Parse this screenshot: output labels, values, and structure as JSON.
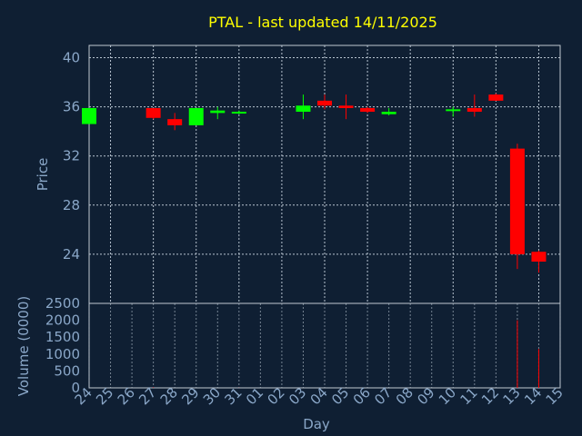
{
  "chart_data": {
    "type": "candlestick",
    "title": "PTAL - last updated 14/11/2025",
    "xlabel": "Day",
    "ylabel": "Price",
    "volume_label": "Volume (0000)",
    "ylim": [
      20,
      41
    ],
    "volume_ylim": [
      0,
      2500
    ],
    "y_ticks": [
      "24",
      "28",
      "32",
      "36",
      "40"
    ],
    "volume_ticks": [
      "0",
      "500",
      "1000",
      "1500",
      "2000",
      "2500"
    ],
    "x_ticks": [
      "24",
      "25",
      "26",
      "27",
      "28",
      "29",
      "30",
      "31",
      "01",
      "02",
      "03",
      "04",
      "05",
      "06",
      "07",
      "08",
      "09",
      "10",
      "11",
      "12",
      "13",
      "14",
      "15"
    ],
    "grid": true,
    "colors": {
      "up": "#00ff00",
      "down": "#ff0000",
      "text": "#8aa7c8",
      "title": "#ffff00",
      "grid": "#b8c4d0",
      "background": "#0f1f33"
    },
    "candles": [
      {
        "day": "24",
        "open": 34.6,
        "high": 35.9,
        "low": 34.6,
        "close": 35.9
      },
      {
        "day": "27",
        "open": 35.9,
        "high": 35.9,
        "low": 35.0,
        "close": 35.1
      },
      {
        "day": "28",
        "open": 35.0,
        "high": 35.5,
        "low": 34.1,
        "close": 34.5
      },
      {
        "day": "29",
        "open": 34.5,
        "high": 35.9,
        "low": 34.5,
        "close": 35.9
      },
      {
        "day": "30",
        "open": 35.5,
        "high": 36.0,
        "low": 35.0,
        "close": 35.7
      },
      {
        "day": "31",
        "open": 35.5,
        "high": 35.7,
        "low": 35.4,
        "close": 35.6
      },
      {
        "day": "03",
        "open": 35.6,
        "high": 37.0,
        "low": 35.0,
        "close": 36.1
      },
      {
        "day": "04",
        "open": 36.5,
        "high": 37.0,
        "low": 35.8,
        "close": 36.1
      },
      {
        "day": "05",
        "open": 36.1,
        "high": 37.0,
        "low": 35.0,
        "close": 35.9
      },
      {
        "day": "06",
        "open": 35.9,
        "high": 36.0,
        "low": 35.5,
        "close": 35.6
      },
      {
        "day": "07",
        "open": 35.4,
        "high": 35.9,
        "low": 35.3,
        "close": 35.6
      },
      {
        "day": "10",
        "open": 35.7,
        "high": 36.0,
        "low": 35.2,
        "close": 35.8
      },
      {
        "day": "11",
        "open": 35.9,
        "high": 37.0,
        "low": 35.2,
        "close": 35.6
      },
      {
        "day": "12",
        "open": 37.0,
        "high": 37.1,
        "low": 36.5,
        "close": 36.5
      },
      {
        "day": "13",
        "open": 32.6,
        "high": 33.0,
        "low": 22.8,
        "close": 24.0
      },
      {
        "day": "14",
        "open": 24.2,
        "high": 24.3,
        "low": 22.5,
        "close": 23.4
      }
    ],
    "volume": [
      {
        "day": "24",
        "value": 0
      },
      {
        "day": "27",
        "value": 15
      },
      {
        "day": "28",
        "value": 0
      },
      {
        "day": "29",
        "value": 0
      },
      {
        "day": "30",
        "value": 0
      },
      {
        "day": "31",
        "value": 5
      },
      {
        "day": "03",
        "value": 0
      },
      {
        "day": "04",
        "value": 0
      },
      {
        "day": "05",
        "value": 0
      },
      {
        "day": "06",
        "value": 0
      },
      {
        "day": "07",
        "value": 0
      },
      {
        "day": "10",
        "value": 0
      },
      {
        "day": "11",
        "value": 0
      },
      {
        "day": "12",
        "value": 0
      },
      {
        "day": "13",
        "value": 2000
      },
      {
        "day": "14",
        "value": 1150
      }
    ]
  }
}
